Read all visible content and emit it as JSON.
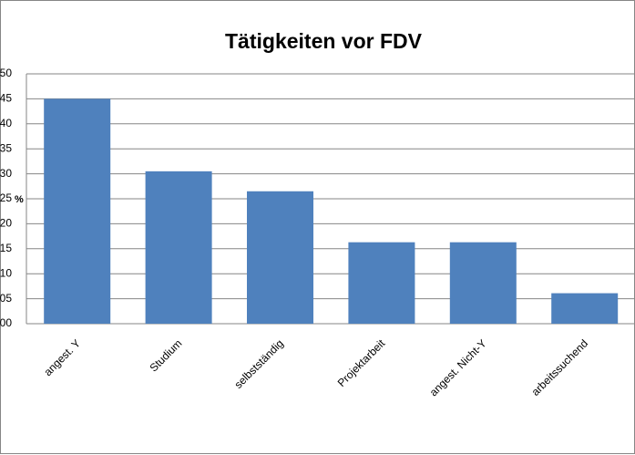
{
  "chart_data": {
    "type": "bar",
    "title": "Tätigkeiten vor FDV",
    "y_label": "%",
    "categories": [
      "angest. Y",
      "Studium",
      "selbstständig",
      "Projektarbeit",
      "angest. Nicht-Y",
      "arbeitssuchend"
    ],
    "values": [
      45,
      30.5,
      26.5,
      16.3,
      16.3,
      6.1
    ],
    "color": "#4f81bd",
    "ylim": [
      0,
      50
    ],
    "yticks": [
      {
        "value": 0,
        "label": "00"
      },
      {
        "value": 5,
        "label": "05"
      },
      10,
      15,
      20,
      25,
      30,
      35,
      40,
      45,
      50
    ],
    "grid": true
  }
}
